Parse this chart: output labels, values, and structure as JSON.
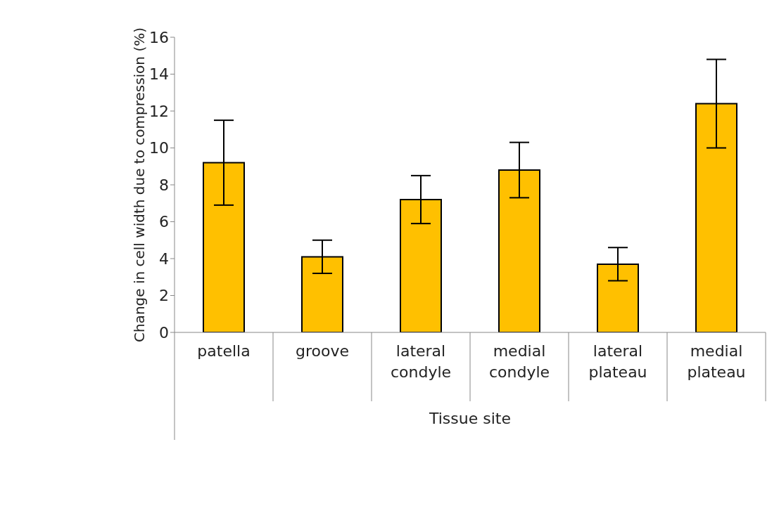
{
  "chart_data": {
    "type": "bar",
    "xlabel": "Tissue site",
    "ylabel": "Change in cell width due to compression (%)",
    "categories": [
      "patella",
      "groove",
      "lateral condyle",
      "medial condyle",
      "lateral plateau",
      "medial plateau"
    ],
    "values": [
      9.2,
      4.1,
      7.2,
      8.8,
      3.7,
      12.4
    ],
    "errors": [
      2.3,
      0.9,
      1.3,
      1.5,
      0.9,
      2.4
    ],
    "color": "#ffc000",
    "ylim": [
      0,
      16
    ],
    "yticks": [
      0,
      2,
      4,
      6,
      8,
      10,
      12,
      14,
      16
    ]
  }
}
